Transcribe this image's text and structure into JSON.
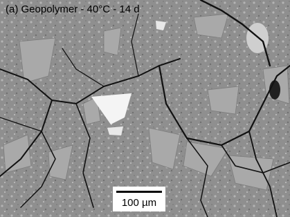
{
  "caption": "(a) Geopolymer - 40°C - 14 d",
  "scale_bar": {
    "label": "100 µm"
  }
}
